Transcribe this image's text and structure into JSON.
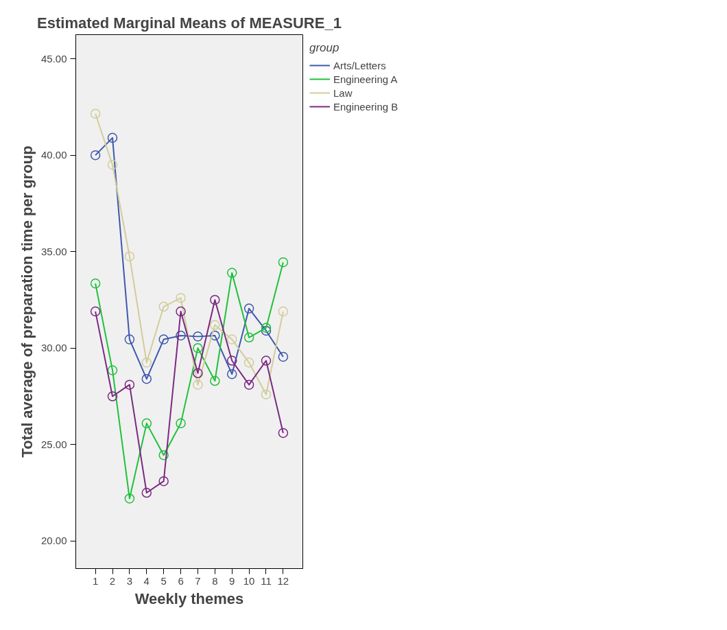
{
  "chart_data": {
    "type": "line",
    "title": "Estimated Marginal Means of MEASURE_1",
    "xlabel": "Weekly themes",
    "ylabel": "Total average of preparation time per group",
    "legend_title": "group",
    "x": [
      1,
      2,
      3,
      4,
      5,
      6,
      7,
      8,
      9,
      10,
      11,
      12
    ],
    "series": [
      {
        "name": "Arts/Letters",
        "color": "#3e58ac",
        "values": [
          40.0,
          40.9,
          30.45,
          28.4,
          30.45,
          30.65,
          30.6,
          30.65,
          28.65,
          32.05,
          30.9,
          29.55
        ]
      },
      {
        "name": "Engineering A",
        "color": "#1fc03c",
        "values": [
          33.35,
          28.85,
          22.2,
          26.1,
          24.45,
          26.1,
          30.0,
          28.3,
          33.9,
          30.55,
          31.05,
          34.45
        ]
      },
      {
        "name": "Law",
        "color": "#d2cc9a",
        "values": [
          42.15,
          39.5,
          34.75,
          29.25,
          32.15,
          32.6,
          28.1,
          31.2,
          30.45,
          29.25,
          27.6,
          31.9
        ]
      },
      {
        "name": "Engineering B",
        "color": "#7b2882",
        "values": [
          31.9,
          27.5,
          28.1,
          22.5,
          23.1,
          31.9,
          28.7,
          32.5,
          29.35,
          28.1,
          29.35,
          25.6
        ]
      }
    ],
    "xlim": [
      -0.15,
      13.15
    ],
    "xticks": [
      1,
      2,
      3,
      4,
      5,
      6,
      7,
      8,
      9,
      10,
      11,
      12
    ],
    "ylim": [
      18.57,
      46.25
    ],
    "yticks": [
      {
        "value": 20,
        "label": "20.00"
      },
      {
        "value": 25,
        "label": "25.00"
      },
      {
        "value": 30,
        "label": "30.00"
      },
      {
        "value": 35,
        "label": "35.00"
      },
      {
        "value": 40,
        "label": "40.00"
      },
      {
        "value": 45,
        "label": "45.00"
      }
    ],
    "grid": false,
    "legend": "top right",
    "marker": "circle",
    "line_style": "solid"
  }
}
